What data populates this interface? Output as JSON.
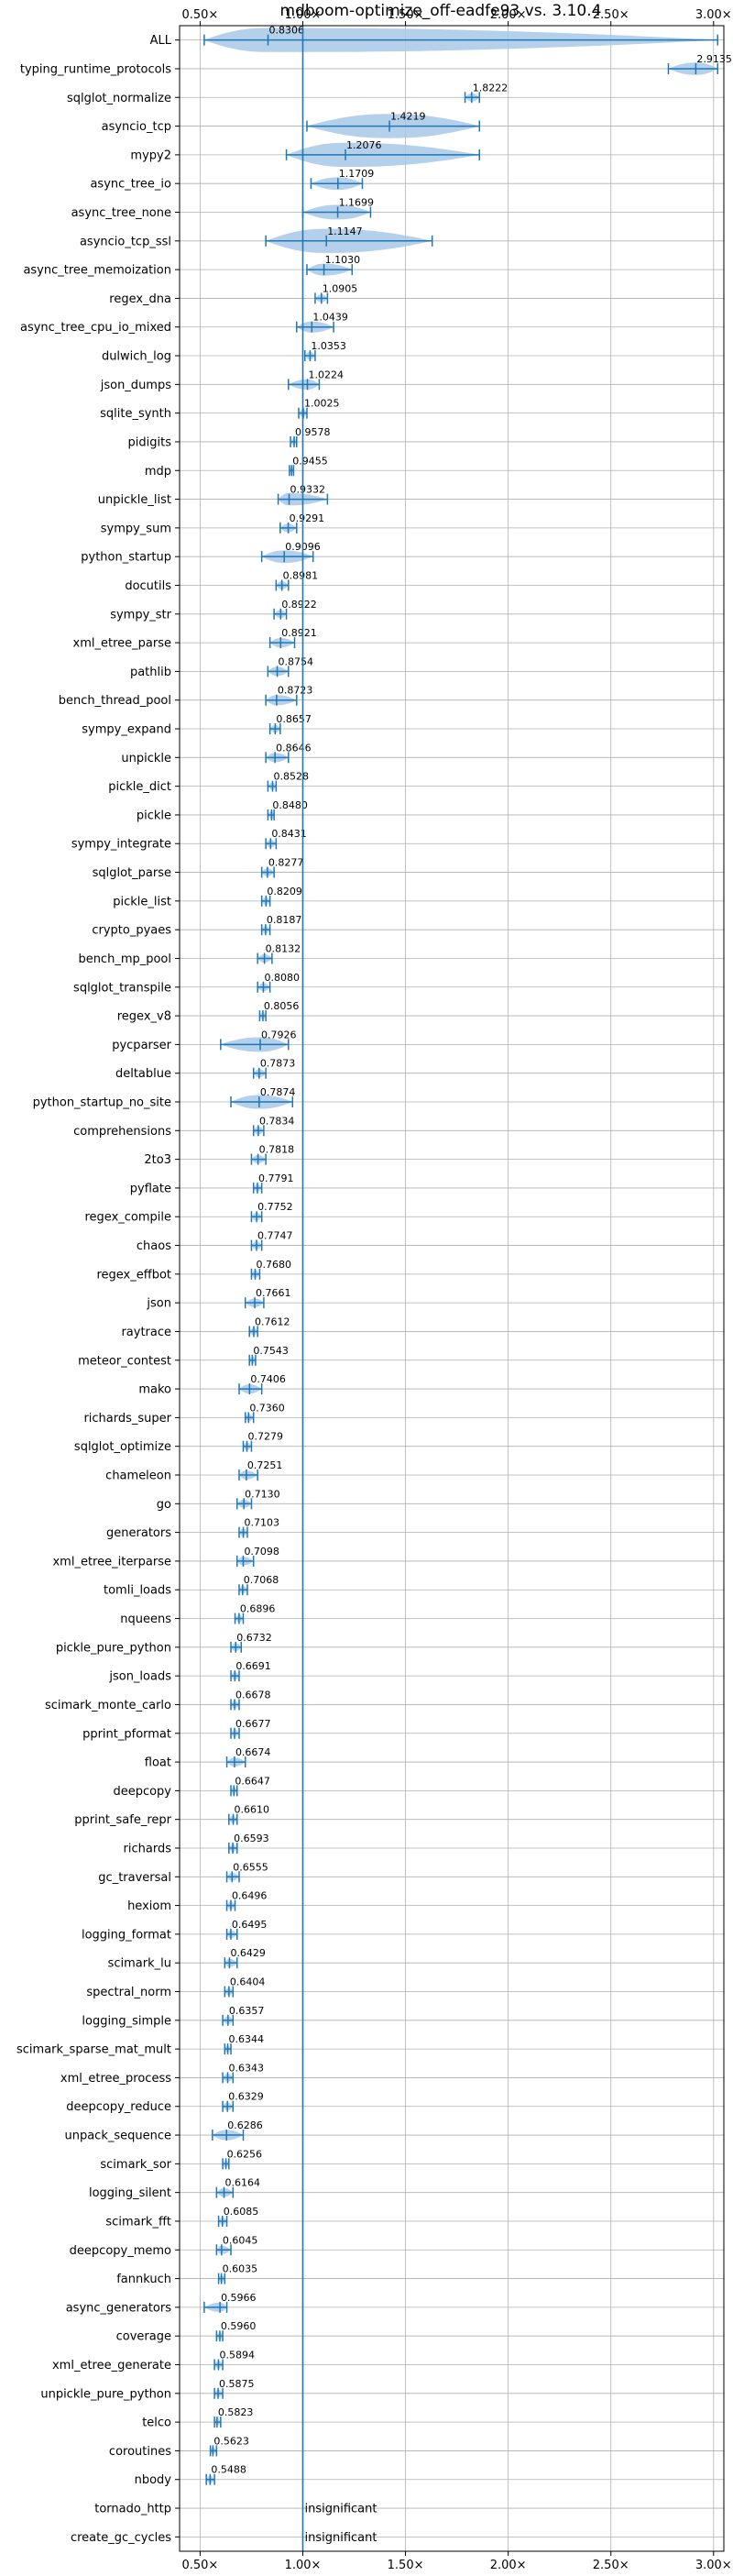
{
  "chart_data": {
    "type": "violin",
    "title": "mdboom-optimize_off-eadfe93 vs. 3.10.4",
    "xlim": [
      0.4,
      3.05
    ],
    "x_ticks": [
      0.5,
      1.0,
      1.5,
      2.0,
      2.5,
      3.0
    ],
    "x_tick_labels": [
      "0.50×",
      "1.00×",
      "1.50×",
      "2.00×",
      "2.50×",
      "3.00×"
    ],
    "reference_line": 1.0,
    "grid": true,
    "colors": {
      "violin": "#a8c8e6",
      "line": "#1f77b4",
      "ref": "#1f77b4"
    },
    "benchmarks": [
      {
        "name": "ALL",
        "label": "0.8306",
        "value": 0.8306,
        "min": 0.52,
        "max": 3.02
      },
      {
        "name": "typing_runtime_protocols",
        "label": "2.9135",
        "value": 2.9135,
        "min": 2.78,
        "max": 3.02
      },
      {
        "name": "sqlglot_normalize",
        "label": "1.8222",
        "value": 1.8222,
        "min": 1.79,
        "max": 1.86
      },
      {
        "name": "asyncio_tcp",
        "label": "1.4219",
        "value": 1.4219,
        "min": 1.02,
        "max": 1.86
      },
      {
        "name": "mypy2",
        "label": "1.2076",
        "value": 1.2076,
        "min": 0.92,
        "max": 1.86
      },
      {
        "name": "async_tree_io",
        "label": "1.1709",
        "value": 1.1709,
        "min": 1.04,
        "max": 1.29
      },
      {
        "name": "async_tree_none",
        "label": "1.1699",
        "value": 1.1699,
        "min": 1.0,
        "max": 1.33
      },
      {
        "name": "asyncio_tcp_ssl",
        "label": "1.1147",
        "value": 1.1147,
        "min": 0.82,
        "max": 1.63
      },
      {
        "name": "async_tree_memoization",
        "label": "1.1030",
        "value": 1.103,
        "min": 1.02,
        "max": 1.24
      },
      {
        "name": "regex_dna",
        "label": "1.0905",
        "value": 1.0905,
        "min": 1.06,
        "max": 1.12
      },
      {
        "name": "async_tree_cpu_io_mixed",
        "label": "1.0439",
        "value": 1.0439,
        "min": 0.97,
        "max": 1.15
      },
      {
        "name": "dulwich_log",
        "label": "1.0353",
        "value": 1.0353,
        "min": 1.01,
        "max": 1.06
      },
      {
        "name": "json_dumps",
        "label": "1.0224",
        "value": 1.0224,
        "min": 0.93,
        "max": 1.08
      },
      {
        "name": "sqlite_synth",
        "label": "1.0025",
        "value": 1.0025,
        "min": 0.98,
        "max": 1.02
      },
      {
        "name": "pidigits",
        "label": "0.9578",
        "value": 0.9578,
        "min": 0.94,
        "max": 0.97
      },
      {
        "name": "mdp",
        "label": "0.9455",
        "value": 0.9455,
        "min": 0.935,
        "max": 0.955
      },
      {
        "name": "unpickle_list",
        "label": "0.9332",
        "value": 0.9332,
        "min": 0.88,
        "max": 1.12
      },
      {
        "name": "sympy_sum",
        "label": "0.9291",
        "value": 0.9291,
        "min": 0.89,
        "max": 0.97
      },
      {
        "name": "python_startup",
        "label": "0.9096",
        "value": 0.9096,
        "min": 0.8,
        "max": 1.05
      },
      {
        "name": "docutils",
        "label": "0.8981",
        "value": 0.8981,
        "min": 0.87,
        "max": 0.93
      },
      {
        "name": "sympy_str",
        "label": "0.8922",
        "value": 0.8922,
        "min": 0.86,
        "max": 0.92
      },
      {
        "name": "xml_etree_parse",
        "label": "0.8921",
        "value": 0.8921,
        "min": 0.84,
        "max": 0.96
      },
      {
        "name": "pathlib",
        "label": "0.8754",
        "value": 0.8754,
        "min": 0.83,
        "max": 0.93
      },
      {
        "name": "bench_thread_pool",
        "label": "0.8723",
        "value": 0.8723,
        "min": 0.82,
        "max": 0.97
      },
      {
        "name": "sympy_expand",
        "label": "0.8657",
        "value": 0.8657,
        "min": 0.84,
        "max": 0.89
      },
      {
        "name": "unpickle",
        "label": "0.8646",
        "value": 0.8646,
        "min": 0.82,
        "max": 0.93
      },
      {
        "name": "pickle_dict",
        "label": "0.8528",
        "value": 0.8528,
        "min": 0.83,
        "max": 0.87
      },
      {
        "name": "pickle",
        "label": "0.8480",
        "value": 0.848,
        "min": 0.83,
        "max": 0.86
      },
      {
        "name": "sympy_integrate",
        "label": "0.8431",
        "value": 0.8431,
        "min": 0.82,
        "max": 0.87
      },
      {
        "name": "sqlglot_parse",
        "label": "0.8277",
        "value": 0.8277,
        "min": 0.8,
        "max": 0.86
      },
      {
        "name": "pickle_list",
        "label": "0.8209",
        "value": 0.8209,
        "min": 0.8,
        "max": 0.84
      },
      {
        "name": "crypto_pyaes",
        "label": "0.8187",
        "value": 0.8187,
        "min": 0.8,
        "max": 0.84
      },
      {
        "name": "bench_mp_pool",
        "label": "0.8132",
        "value": 0.8132,
        "min": 0.78,
        "max": 0.85
      },
      {
        "name": "sqlglot_transpile",
        "label": "0.8080",
        "value": 0.808,
        "min": 0.78,
        "max": 0.84
      },
      {
        "name": "regex_v8",
        "label": "0.8056",
        "value": 0.8056,
        "min": 0.79,
        "max": 0.82
      },
      {
        "name": "pycparser",
        "label": "0.7926",
        "value": 0.7926,
        "min": 0.6,
        "max": 0.93
      },
      {
        "name": "deltablue",
        "label": "0.7873",
        "value": 0.7873,
        "min": 0.76,
        "max": 0.82
      },
      {
        "name": "python_startup_no_site",
        "label": "0.7874",
        "value": 0.7874,
        "min": 0.65,
        "max": 0.95
      },
      {
        "name": "comprehensions",
        "label": "0.7834",
        "value": 0.7834,
        "min": 0.76,
        "max": 0.81
      },
      {
        "name": "2to3",
        "label": "0.7818",
        "value": 0.7818,
        "min": 0.75,
        "max": 0.82
      },
      {
        "name": "pyflate",
        "label": "0.7791",
        "value": 0.7791,
        "min": 0.76,
        "max": 0.8
      },
      {
        "name": "regex_compile",
        "label": "0.7752",
        "value": 0.7752,
        "min": 0.75,
        "max": 0.8
      },
      {
        "name": "chaos",
        "label": "0.7747",
        "value": 0.7747,
        "min": 0.75,
        "max": 0.8
      },
      {
        "name": "regex_effbot",
        "label": "0.7680",
        "value": 0.768,
        "min": 0.75,
        "max": 0.79
      },
      {
        "name": "json",
        "label": "0.7661",
        "value": 0.7661,
        "min": 0.72,
        "max": 0.81
      },
      {
        "name": "raytrace",
        "label": "0.7612",
        "value": 0.7612,
        "min": 0.74,
        "max": 0.78
      },
      {
        "name": "meteor_contest",
        "label": "0.7543",
        "value": 0.7543,
        "min": 0.74,
        "max": 0.77
      },
      {
        "name": "mako",
        "label": "0.7406",
        "value": 0.7406,
        "min": 0.69,
        "max": 0.8
      },
      {
        "name": "richards_super",
        "label": "0.7360",
        "value": 0.736,
        "min": 0.72,
        "max": 0.76
      },
      {
        "name": "sqlglot_optimize",
        "label": "0.7279",
        "value": 0.7279,
        "min": 0.71,
        "max": 0.75
      },
      {
        "name": "chameleon",
        "label": "0.7251",
        "value": 0.7251,
        "min": 0.69,
        "max": 0.78
      },
      {
        "name": "go",
        "label": "0.7130",
        "value": 0.713,
        "min": 0.68,
        "max": 0.75
      },
      {
        "name": "generators",
        "label": "0.7103",
        "value": 0.7103,
        "min": 0.69,
        "max": 0.73
      },
      {
        "name": "xml_etree_iterparse",
        "label": "0.7098",
        "value": 0.7098,
        "min": 0.68,
        "max": 0.76
      },
      {
        "name": "tomli_loads",
        "label": "0.7068",
        "value": 0.7068,
        "min": 0.69,
        "max": 0.73
      },
      {
        "name": "nqueens",
        "label": "0.6896",
        "value": 0.6896,
        "min": 0.67,
        "max": 0.71
      },
      {
        "name": "pickle_pure_python",
        "label": "0.6732",
        "value": 0.6732,
        "min": 0.65,
        "max": 0.7
      },
      {
        "name": "json_loads",
        "label": "0.6691",
        "value": 0.6691,
        "min": 0.65,
        "max": 0.69
      },
      {
        "name": "scimark_monte_carlo",
        "label": "0.6678",
        "value": 0.6678,
        "min": 0.65,
        "max": 0.69
      },
      {
        "name": "pprint_pformat",
        "label": "0.6677",
        "value": 0.6677,
        "min": 0.65,
        "max": 0.69
      },
      {
        "name": "float",
        "label": "0.6674",
        "value": 0.6674,
        "min": 0.63,
        "max": 0.72
      },
      {
        "name": "deepcopy",
        "label": "0.6647",
        "value": 0.6647,
        "min": 0.65,
        "max": 0.68
      },
      {
        "name": "pprint_safe_repr",
        "label": "0.6610",
        "value": 0.661,
        "min": 0.64,
        "max": 0.68
      },
      {
        "name": "richards",
        "label": "0.6593",
        "value": 0.6593,
        "min": 0.64,
        "max": 0.68
      },
      {
        "name": "gc_traversal",
        "label": "0.6555",
        "value": 0.6555,
        "min": 0.63,
        "max": 0.69
      },
      {
        "name": "hexiom",
        "label": "0.6496",
        "value": 0.6496,
        "min": 0.63,
        "max": 0.67
      },
      {
        "name": "logging_format",
        "label": "0.6495",
        "value": 0.6495,
        "min": 0.63,
        "max": 0.68
      },
      {
        "name": "scimark_lu",
        "label": "0.6429",
        "value": 0.6429,
        "min": 0.62,
        "max": 0.68
      },
      {
        "name": "spectral_norm",
        "label": "0.6404",
        "value": 0.6404,
        "min": 0.62,
        "max": 0.66
      },
      {
        "name": "logging_simple",
        "label": "0.6357",
        "value": 0.6357,
        "min": 0.61,
        "max": 0.66
      },
      {
        "name": "scimark_sparse_mat_mult",
        "label": "0.6344",
        "value": 0.6344,
        "min": 0.62,
        "max": 0.65
      },
      {
        "name": "xml_etree_process",
        "label": "0.6343",
        "value": 0.6343,
        "min": 0.61,
        "max": 0.66
      },
      {
        "name": "deepcopy_reduce",
        "label": "0.6329",
        "value": 0.6329,
        "min": 0.61,
        "max": 0.66
      },
      {
        "name": "unpack_sequence",
        "label": "0.6286",
        "value": 0.6286,
        "min": 0.56,
        "max": 0.71
      },
      {
        "name": "scimark_sor",
        "label": "0.6256",
        "value": 0.6256,
        "min": 0.61,
        "max": 0.64
      },
      {
        "name": "logging_silent",
        "label": "0.6164",
        "value": 0.6164,
        "min": 0.58,
        "max": 0.66
      },
      {
        "name": "scimark_fft",
        "label": "0.6085",
        "value": 0.6085,
        "min": 0.59,
        "max": 0.63
      },
      {
        "name": "deepcopy_memo",
        "label": "0.6045",
        "value": 0.6045,
        "min": 0.58,
        "max": 0.65
      },
      {
        "name": "fannkuch",
        "label": "0.6035",
        "value": 0.6035,
        "min": 0.59,
        "max": 0.62
      },
      {
        "name": "async_generators",
        "label": "0.5966",
        "value": 0.5966,
        "min": 0.52,
        "max": 0.63
      },
      {
        "name": "coverage",
        "label": "0.5960",
        "value": 0.596,
        "min": 0.58,
        "max": 0.61
      },
      {
        "name": "xml_etree_generate",
        "label": "0.5894",
        "value": 0.5894,
        "min": 0.57,
        "max": 0.61
      },
      {
        "name": "unpickle_pure_python",
        "label": "0.5875",
        "value": 0.5875,
        "min": 0.57,
        "max": 0.61
      },
      {
        "name": "telco",
        "label": "0.5823",
        "value": 0.5823,
        "min": 0.57,
        "max": 0.6
      },
      {
        "name": "coroutines",
        "label": "0.5623",
        "value": 0.5623,
        "min": 0.55,
        "max": 0.58
      },
      {
        "name": "nbody",
        "label": "0.5488",
        "value": 0.5488,
        "min": 0.53,
        "max": 0.57
      },
      {
        "name": "tornado_http",
        "label": "insignificant",
        "value": null
      },
      {
        "name": "create_gc_cycles",
        "label": "insignificant",
        "value": null
      }
    ]
  }
}
